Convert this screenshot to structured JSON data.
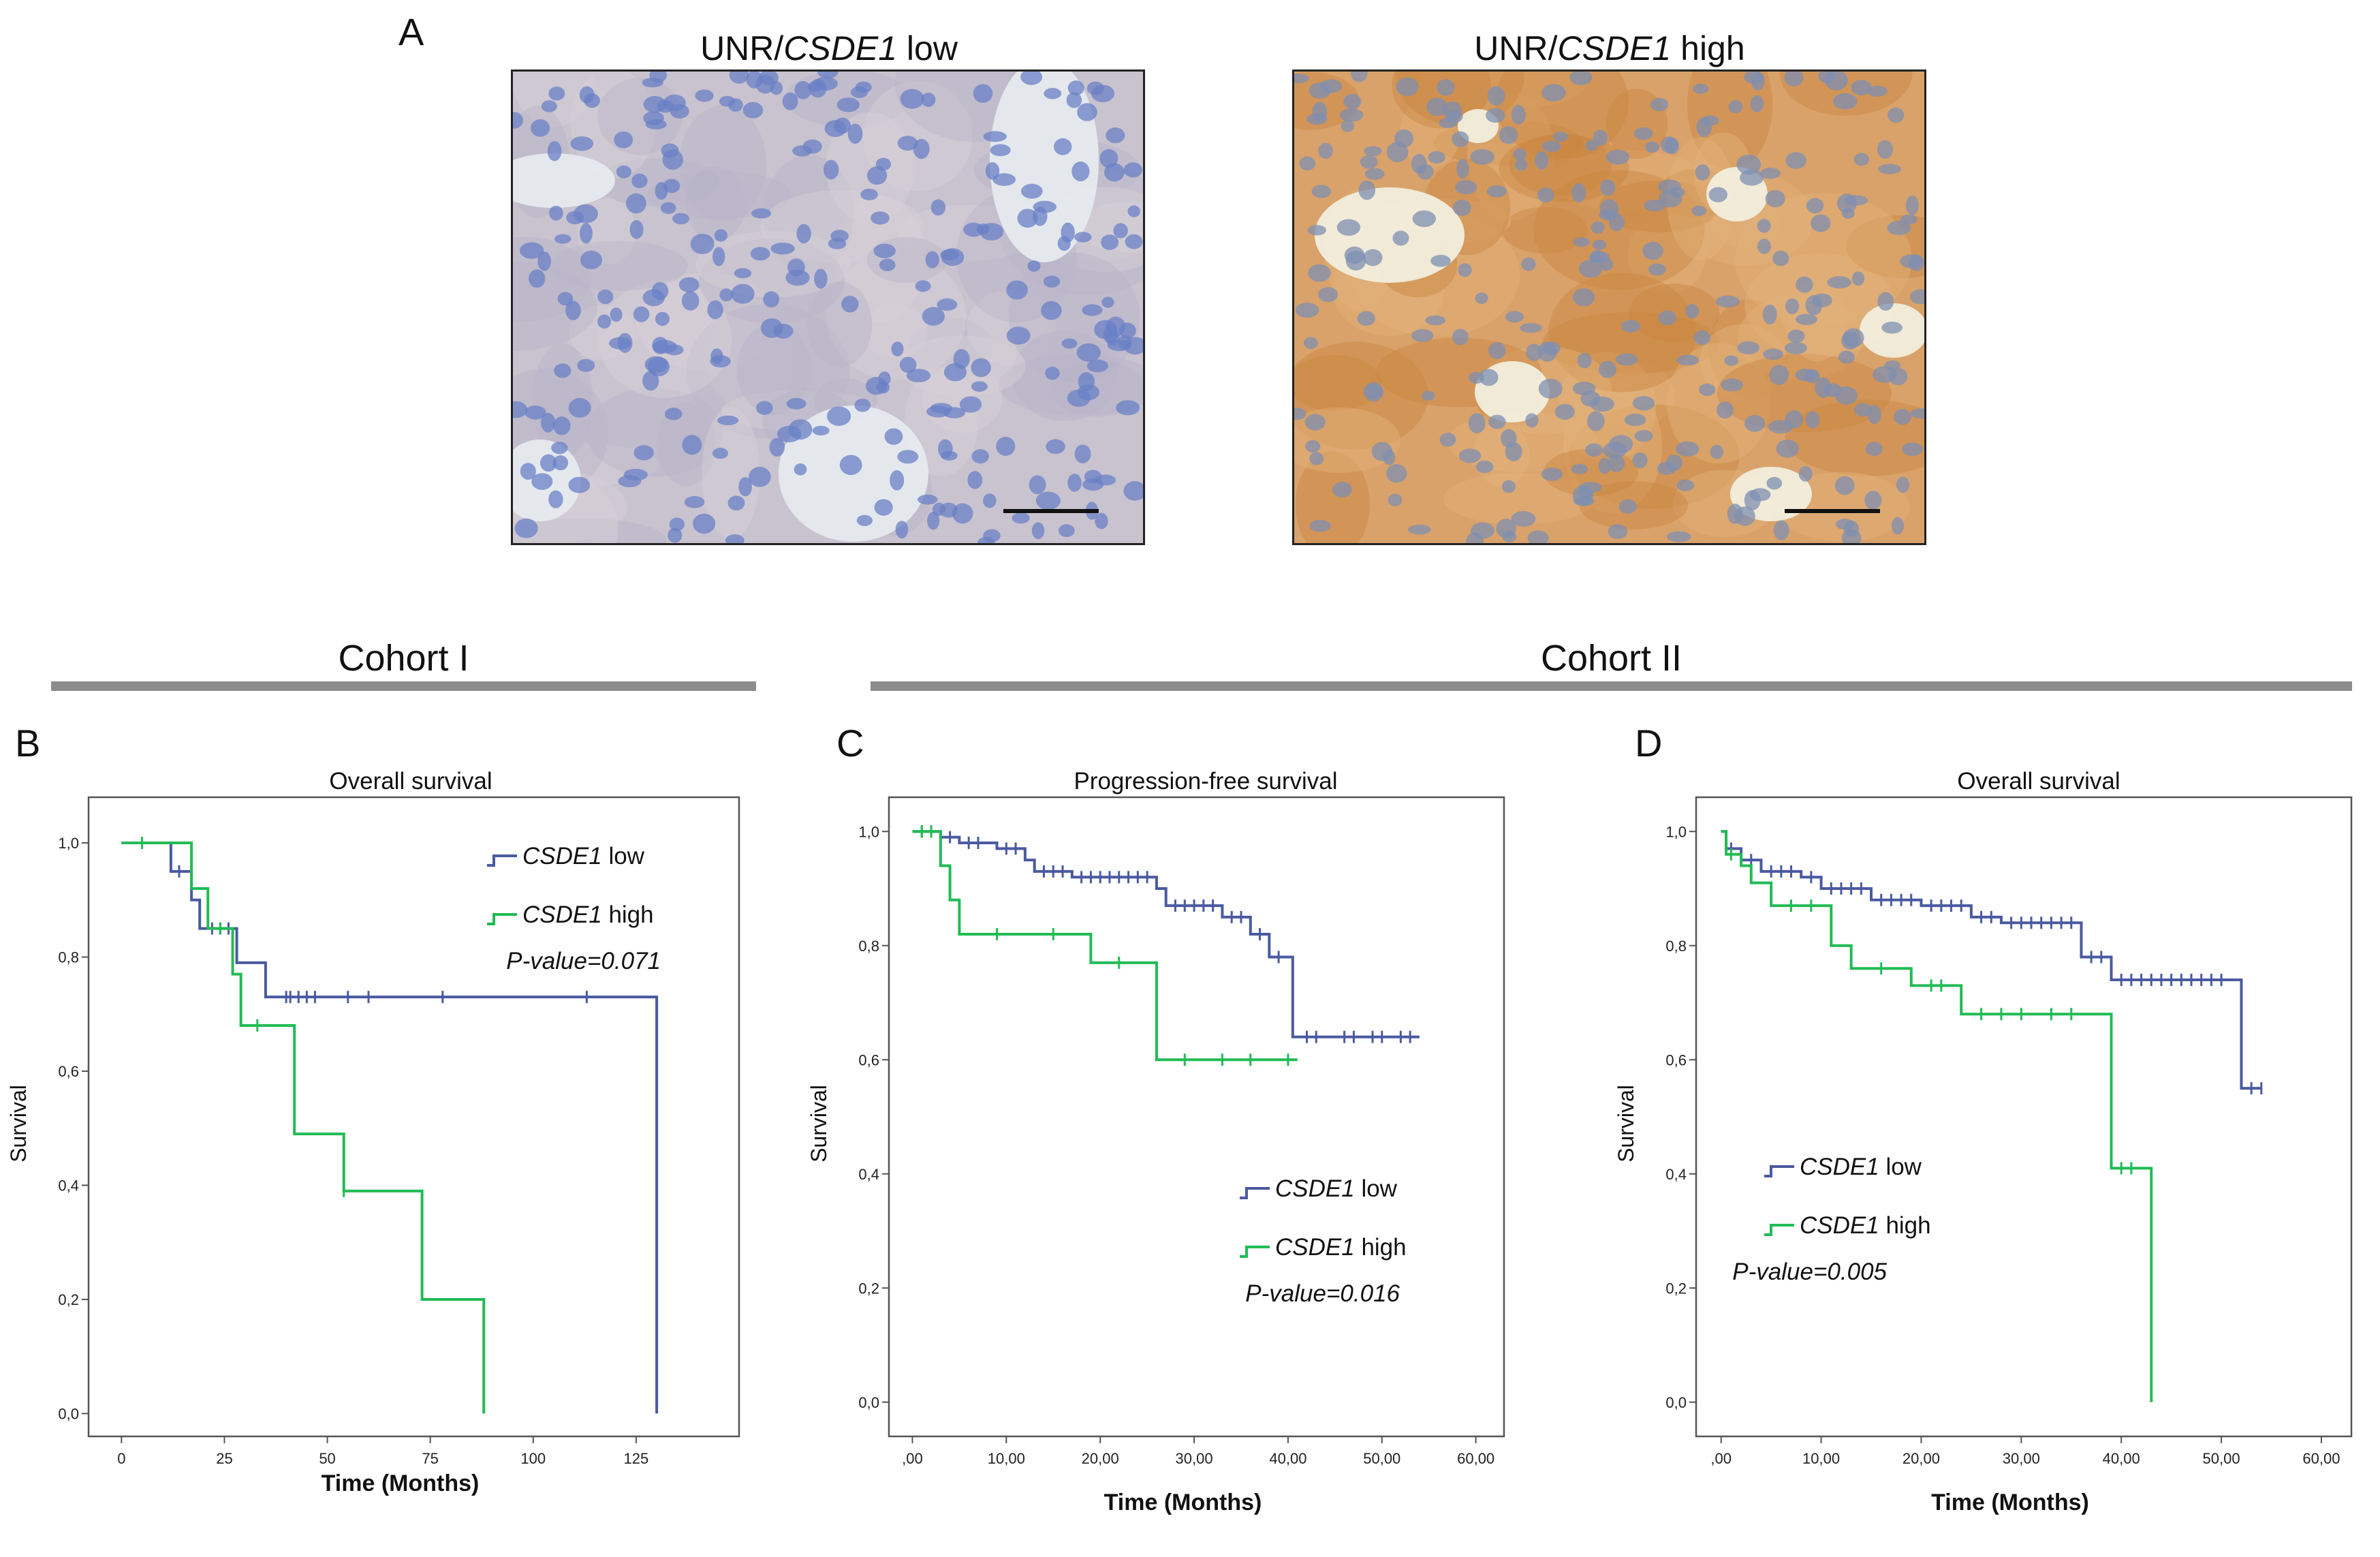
{
  "panel_a": {
    "letter": "A",
    "images": [
      {
        "prefix": "UNR/",
        "gene": "CSDE1",
        "suffix": " low"
      },
      {
        "prefix": "UNR/",
        "gene": "CSDE1",
        "suffix": " high"
      }
    ]
  },
  "cohorts": [
    {
      "label": "Cohort I"
    },
    {
      "label": "Cohort II"
    }
  ],
  "colors": {
    "low": "#4a5aa0",
    "high": "#22bb55",
    "axis": "#555555"
  },
  "chart_data": [
    {
      "letter": "B",
      "type": "line",
      "title": "Overall survival",
      "xlabel": "Time (Months)",
      "ylabel": "Survival",
      "xlim": [
        -8,
        150
      ],
      "ylim": [
        -0.04,
        1.08
      ],
      "xticks": [
        0,
        25,
        50,
        75,
        100,
        125
      ],
      "xticklabels": [
        "0",
        "25",
        "50",
        "75",
        "100",
        "125"
      ],
      "yticks": [
        0,
        0.2,
        0.4,
        0.6,
        0.8,
        1.0
      ],
      "yticklabels": [
        "0,0",
        "0,2",
        "0,4",
        "0,6",
        "0,8",
        "1,0"
      ],
      "legend": {
        "position": "top-right",
        "low_label": "low",
        "high_label": "high",
        "gene": "CSDE1",
        "pvalue": "P-value=0.071"
      },
      "series": [
        {
          "name": "CSDE1 low",
          "color_key": "low",
          "steps": [
            [
              0,
              1.0
            ],
            [
              12,
              0.95
            ],
            [
              17,
              0.9
            ],
            [
              19,
              0.85
            ],
            [
              28,
              0.79
            ],
            [
              35,
              0.73
            ],
            [
              130,
              0.73
            ],
            [
              130,
              0.0
            ]
          ],
          "censors": [
            [
              14,
              0.95
            ],
            [
              22,
              0.85
            ],
            [
              24,
              0.85
            ],
            [
              26,
              0.85
            ],
            [
              40,
              0.73
            ],
            [
              41,
              0.73
            ],
            [
              43,
              0.73
            ],
            [
              45,
              0.73
            ],
            [
              47,
              0.73
            ],
            [
              55,
              0.73
            ],
            [
              60,
              0.73
            ],
            [
              78,
              0.73
            ],
            [
              113,
              0.73
            ]
          ]
        },
        {
          "name": "CSDE1 high",
          "color_key": "high",
          "steps": [
            [
              0,
              1.0
            ],
            [
              17,
              0.92
            ],
            [
              21,
              0.85
            ],
            [
              27,
              0.77
            ],
            [
              29,
              0.68
            ],
            [
              42,
              0.49
            ],
            [
              54,
              0.39
            ],
            [
              73,
              0.2
            ],
            [
              88,
              0.2
            ],
            [
              88,
              0.0
            ]
          ],
          "censors": [
            [
              5,
              1.0
            ],
            [
              24,
              0.85
            ],
            [
              33,
              0.68
            ],
            [
              54,
              0.39
            ]
          ]
        }
      ]
    },
    {
      "letter": "C",
      "type": "line",
      "title": "Progression-free survival",
      "xlabel": "Time (Months)",
      "ylabel": "Survival",
      "xlim": [
        -2.5,
        63
      ],
      "ylim": [
        -0.06,
        1.06
      ],
      "xticks": [
        0,
        10,
        20,
        30,
        40,
        50,
        60
      ],
      "xticklabels": [
        ",00",
        "10,00",
        "20,00",
        "30,00",
        "40,00",
        "50,00",
        "60,00"
      ],
      "yticks": [
        0,
        0.2,
        0.4,
        0.6,
        0.8,
        1.0
      ],
      "yticklabels": [
        "0,0",
        "0,2",
        "0,4",
        "0,6",
        "0,8",
        "1,0"
      ],
      "legend": {
        "position": "bottom-right",
        "low_label": "low",
        "high_label": "high",
        "gene": "CSDE1",
        "pvalue": "P-value=0.016"
      },
      "series": [
        {
          "name": "CSDE1 low",
          "color_key": "low",
          "steps": [
            [
              0,
              1.0
            ],
            [
              3,
              0.99
            ],
            [
              5,
              0.98
            ],
            [
              9,
              0.97
            ],
            [
              12,
              0.95
            ],
            [
              13,
              0.93
            ],
            [
              17,
              0.92
            ],
            [
              26,
              0.9
            ],
            [
              27,
              0.87
            ],
            [
              33,
              0.85
            ],
            [
              36,
              0.82
            ],
            [
              38,
              0.78
            ],
            [
              40,
              0.78
            ],
            [
              40.5,
              0.64
            ],
            [
              54,
              0.64
            ]
          ],
          "censors": [
            [
              1,
              1.0
            ],
            [
              2,
              1.0
            ],
            [
              4,
              0.99
            ],
            [
              6,
              0.98
            ],
            [
              7,
              0.98
            ],
            [
              10,
              0.97
            ],
            [
              11,
              0.97
            ],
            [
              14,
              0.93
            ],
            [
              15,
              0.93
            ],
            [
              16,
              0.93
            ],
            [
              18,
              0.92
            ],
            [
              19,
              0.92
            ],
            [
              20,
              0.92
            ],
            [
              21,
              0.92
            ],
            [
              22,
              0.92
            ],
            [
              23,
              0.92
            ],
            [
              24,
              0.92
            ],
            [
              25,
              0.92
            ],
            [
              28,
              0.87
            ],
            [
              29,
              0.87
            ],
            [
              30,
              0.87
            ],
            [
              31,
              0.87
            ],
            [
              32,
              0.87
            ],
            [
              34,
              0.85
            ],
            [
              35,
              0.85
            ],
            [
              37,
              0.82
            ],
            [
              39,
              0.78
            ],
            [
              42,
              0.64
            ],
            [
              43,
              0.64
            ],
            [
              46,
              0.64
            ],
            [
              47,
              0.64
            ],
            [
              49,
              0.64
            ],
            [
              50,
              0.64
            ],
            [
              52,
              0.64
            ],
            [
              53,
              0.64
            ]
          ]
        },
        {
          "name": "CSDE1 high",
          "color_key": "high",
          "steps": [
            [
              0,
              1.0
            ],
            [
              3,
              0.94
            ],
            [
              4,
              0.88
            ],
            [
              5,
              0.82
            ],
            [
              19,
              0.77
            ],
            [
              26,
              0.6
            ],
            [
              41,
              0.6
            ]
          ],
          "censors": [
            [
              1,
              1.0
            ],
            [
              2,
              1.0
            ],
            [
              9,
              0.82
            ],
            [
              15,
              0.82
            ],
            [
              22,
              0.77
            ],
            [
              29,
              0.6
            ],
            [
              33,
              0.6
            ],
            [
              36,
              0.6
            ],
            [
              40,
              0.6
            ]
          ]
        }
      ]
    },
    {
      "letter": "D",
      "type": "line",
      "title": "Overall survival",
      "xlabel": "Time (Months)",
      "ylabel": "Survival",
      "xlim": [
        -2.5,
        63
      ],
      "ylim": [
        -0.06,
        1.06
      ],
      "xticks": [
        0,
        10,
        20,
        30,
        40,
        50,
        60
      ],
      "xticklabels": [
        ",00",
        "10,00",
        "20,00",
        "30,00",
        "40,00",
        "50,00",
        "60,00"
      ],
      "yticks": [
        0,
        0.2,
        0.4,
        0.6,
        0.8,
        1.0
      ],
      "yticklabels": [
        "0,0",
        "0,2",
        "0,4",
        "0,6",
        "0,8",
        "1,0"
      ],
      "legend": {
        "position": "middle-left",
        "low_label": "low",
        "high_label": "high",
        "gene": "CSDE1",
        "pvalue": "P-value=0.005"
      },
      "series": [
        {
          "name": "CSDE1 low",
          "color_key": "low",
          "steps": [
            [
              0,
              1.0
            ],
            [
              0.5,
              0.97
            ],
            [
              2,
              0.95
            ],
            [
              4,
              0.93
            ],
            [
              8,
              0.92
            ],
            [
              10,
              0.9
            ],
            [
              15,
              0.88
            ],
            [
              20,
              0.87
            ],
            [
              25,
              0.85
            ],
            [
              28,
              0.84
            ],
            [
              36,
              0.78
            ],
            [
              39,
              0.74
            ],
            [
              52,
              0.74
            ],
            [
              52,
              0.55
            ],
            [
              54,
              0.55
            ]
          ],
          "censors": [
            [
              1,
              0.97
            ],
            [
              3,
              0.95
            ],
            [
              5,
              0.93
            ],
            [
              6,
              0.93
            ],
            [
              7,
              0.93
            ],
            [
              9,
              0.92
            ],
            [
              11,
              0.9
            ],
            [
              12,
              0.9
            ],
            [
              13,
              0.9
            ],
            [
              14,
              0.9
            ],
            [
              16,
              0.88
            ],
            [
              17,
              0.88
            ],
            [
              18,
              0.88
            ],
            [
              19,
              0.88
            ],
            [
              21,
              0.87
            ],
            [
              22,
              0.87
            ],
            [
              23,
              0.87
            ],
            [
              24,
              0.87
            ],
            [
              26,
              0.85
            ],
            [
              27,
              0.85
            ],
            [
              29,
              0.84
            ],
            [
              30,
              0.84
            ],
            [
              31,
              0.84
            ],
            [
              32,
              0.84
            ],
            [
              33,
              0.84
            ],
            [
              34,
              0.84
            ],
            [
              35,
              0.84
            ],
            [
              37,
              0.78
            ],
            [
              38,
              0.78
            ],
            [
              40,
              0.74
            ],
            [
              41,
              0.74
            ],
            [
              42,
              0.74
            ],
            [
              43,
              0.74
            ],
            [
              44,
              0.74
            ],
            [
              45,
              0.74
            ],
            [
              46,
              0.74
            ],
            [
              47,
              0.74
            ],
            [
              48,
              0.74
            ],
            [
              49,
              0.74
            ],
            [
              50,
              0.74
            ],
            [
              53,
              0.55
            ],
            [
              54,
              0.55
            ]
          ]
        },
        {
          "name": "CSDE1 high",
          "color_key": "high",
          "steps": [
            [
              0,
              1.0
            ],
            [
              0.5,
              0.96
            ],
            [
              2,
              0.94
            ],
            [
              3,
              0.91
            ],
            [
              5,
              0.87
            ],
            [
              11,
              0.8
            ],
            [
              13,
              0.76
            ],
            [
              19,
              0.73
            ],
            [
              24,
              0.68
            ],
            [
              39,
              0.68
            ],
            [
              39,
              0.41
            ],
            [
              43,
              0.41
            ],
            [
              43,
              0.0
            ]
          ],
          "censors": [
            [
              1,
              0.96
            ],
            [
              7,
              0.87
            ],
            [
              9,
              0.87
            ],
            [
              16,
              0.76
            ],
            [
              21,
              0.73
            ],
            [
              22,
              0.73
            ],
            [
              26,
              0.68
            ],
            [
              28,
              0.68
            ],
            [
              30,
              0.68
            ],
            [
              33,
              0.68
            ],
            [
              35,
              0.68
            ],
            [
              40,
              0.41
            ],
            [
              41,
              0.41
            ]
          ]
        }
      ]
    }
  ]
}
